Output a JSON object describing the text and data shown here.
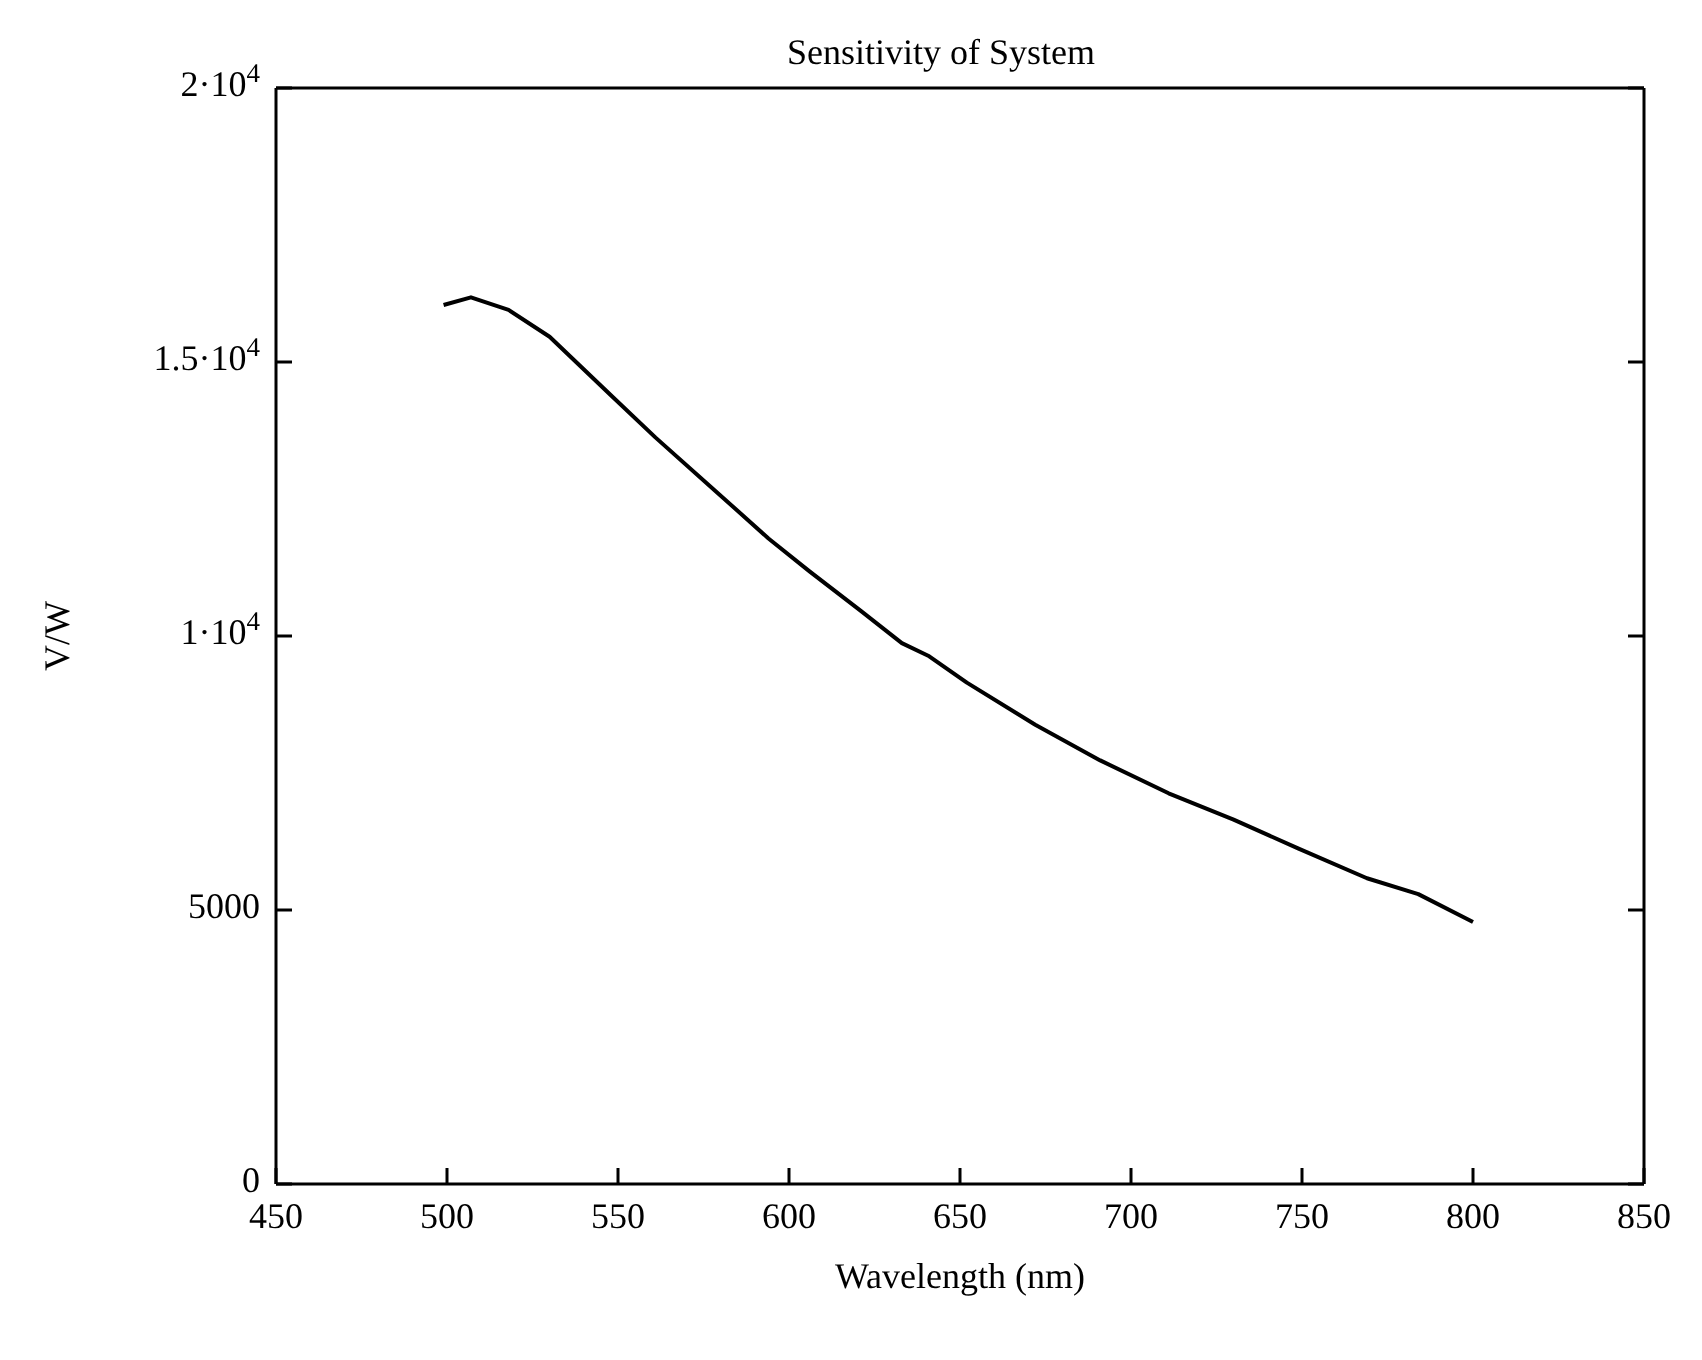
{
  "chart_data": {
    "type": "line",
    "title": "Sensitivity of System",
    "xlabel": "Wavelength (nm)",
    "ylabel": "V/W",
    "xlim": [
      450,
      850
    ],
    "xticks": [
      450,
      500,
      550,
      600,
      650,
      700,
      750,
      800,
      850
    ],
    "ylim": [
      0,
      20000
    ],
    "yticks": [
      0,
      5000,
      {
        "value": 10000,
        "label": "1·10$^{4}$"
      },
      {
        "value": 15000,
        "label": "1.5·10$^{4}$"
      },
      {
        "value": 20000,
        "label": "2·10$^{4}$"
      }
    ],
    "grid": false,
    "marker": "none",
    "line_style": "solid",
    "series": [
      {
        "color": "#000000",
        "x": [
          499,
          507,
          518,
          530,
          548,
          561,
          577,
          594,
          606,
          621,
          633,
          641,
          652,
          672,
          691,
          711,
          730,
          749,
          769,
          784,
          800
        ],
        "values": [
          16040,
          16180,
          15950,
          15460,
          14390,
          13620,
          12730,
          11780,
          11180,
          10460,
          9870,
          9630,
          9150,
          8380,
          7730,
          7130,
          6650,
          6120,
          5580,
          5290,
          4780
        ]
      }
    ]
  }
}
